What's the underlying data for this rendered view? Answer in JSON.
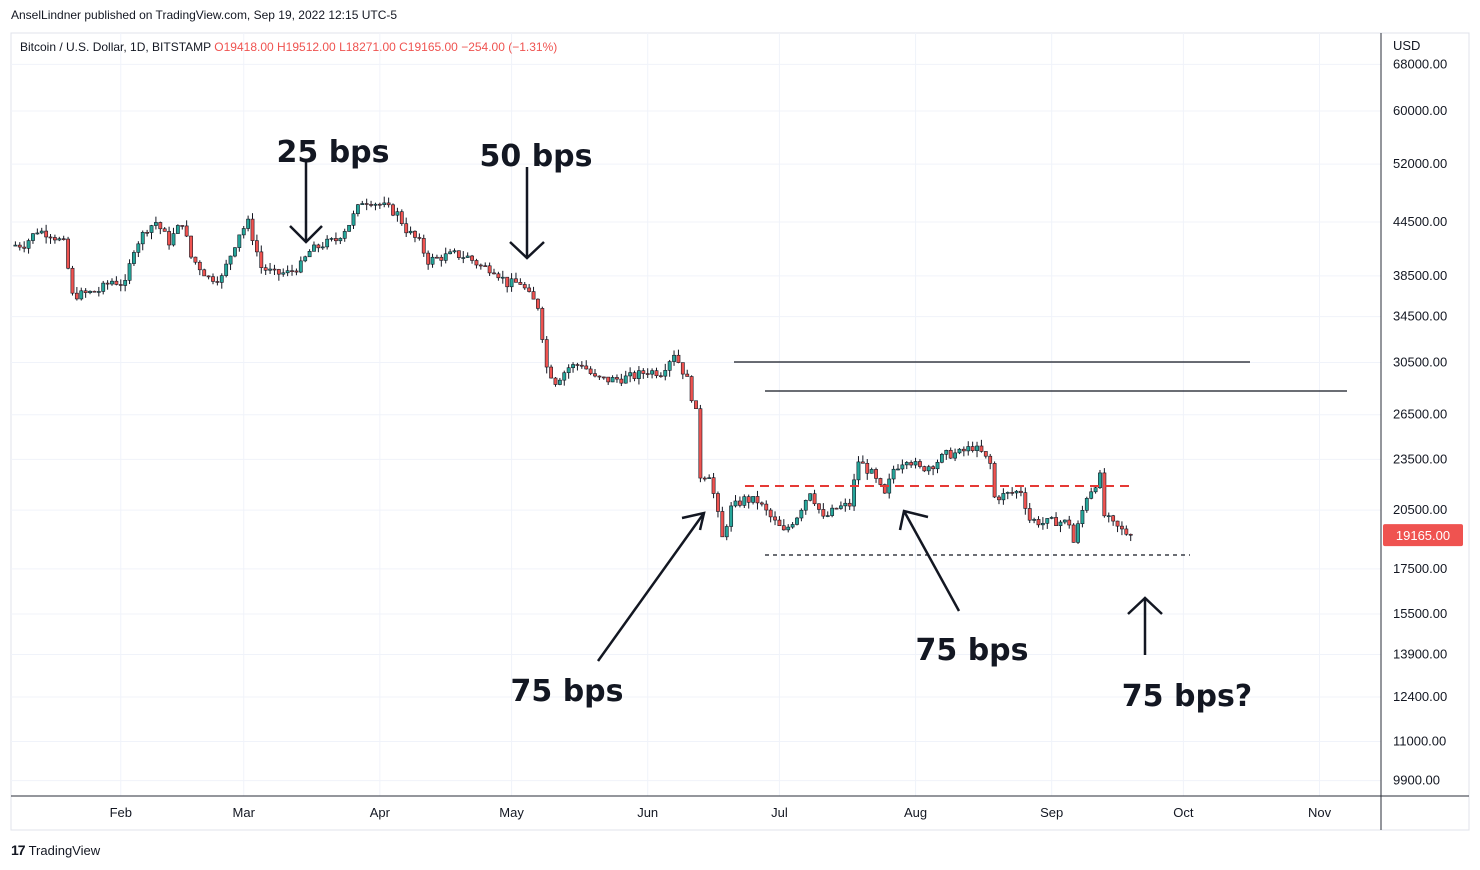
{
  "header": {
    "published_by": "AnselLindner published on TradingView.com, Sep 19, 2022 12:15 UTC-5"
  },
  "legend": {
    "symbol": "Bitcoin / U.S. Dollar, 1D, BITSTAMP",
    "open": "O19418.00",
    "high": "H19512.00",
    "low": "L18271.00",
    "close": "C19165.00",
    "change": "−254.00 (−1.31%)"
  },
  "footer": {
    "brand": "TradingView",
    "logo_glyph": "17"
  },
  "colors": {
    "up": "#26a69a",
    "down": "#ef5350",
    "annotation": "#131722",
    "dashed_red": "#e53935"
  },
  "chart_data": {
    "type": "candlestick",
    "currency": "USD",
    "y_scale": "log",
    "ylim": [
      9500,
      74000
    ],
    "x_range": [
      "2022-01-07",
      "2022-11-15"
    ],
    "y_ticks": [
      "68000.00",
      "60000.00",
      "52000.00",
      "44500.00",
      "38500.00",
      "34500.00",
      "30500.00",
      "26500.00",
      "23500.00",
      "20500.00",
      "17500.00",
      "15500.00",
      "13900.00",
      "12400.00",
      "11000.00",
      "9900.00"
    ],
    "x_ticks": [
      {
        "label": "Feb",
        "date": "2022-02-01"
      },
      {
        "label": "Mar",
        "date": "2022-03-01"
      },
      {
        "label": "Apr",
        "date": "2022-04-01"
      },
      {
        "label": "May",
        "date": "2022-05-01"
      },
      {
        "label": "Jun",
        "date": "2022-06-01"
      },
      {
        "label": "Jul",
        "date": "2022-07-01"
      },
      {
        "label": "Aug",
        "date": "2022-08-01"
      },
      {
        "label": "Sep",
        "date": "2022-09-01"
      },
      {
        "label": "Oct",
        "date": "2022-10-01"
      },
      {
        "label": "Nov",
        "date": "2022-11-01"
      }
    ],
    "last_price": "19165.00",
    "path": [
      [
        "2022-01-07",
        41800
      ],
      [
        "2022-01-10",
        41900
      ],
      [
        "2022-01-13",
        43500
      ],
      [
        "2022-01-16",
        43100
      ],
      [
        "2022-01-19",
        42000
      ],
      [
        "2022-01-21",
        36500
      ],
      [
        "2022-01-24",
        36700
      ],
      [
        "2022-01-27",
        37000
      ],
      [
        "2022-01-30",
        38000
      ],
      [
        "2022-02-02",
        37600
      ],
      [
        "2022-02-04",
        41500
      ],
      [
        "2022-02-07",
        43800
      ],
      [
        "2022-02-09",
        44500
      ],
      [
        "2022-02-12",
        42200
      ],
      [
        "2022-02-15",
        44500
      ],
      [
        "2022-02-17",
        40500
      ],
      [
        "2022-02-21",
        38300
      ],
      [
        "2022-02-24",
        38300
      ],
      [
        "2022-02-28",
        43200
      ],
      [
        "2022-03-02",
        44400
      ],
      [
        "2022-03-05",
        39400
      ],
      [
        "2022-03-08",
        38700
      ],
      [
        "2022-03-11",
        38800
      ],
      [
        "2022-03-14",
        39600
      ],
      [
        "2022-03-16",
        41100
      ],
      [
        "2022-03-19",
        41900
      ],
      [
        "2022-03-22",
        42400
      ],
      [
        "2022-03-25",
        44300
      ],
      [
        "2022-03-28",
        47100
      ],
      [
        "2022-03-30",
        47100
      ],
      [
        "2022-04-02",
        46400
      ],
      [
        "2022-04-05",
        45500
      ],
      [
        "2022-04-07",
        43600
      ],
      [
        "2022-04-10",
        42100
      ],
      [
        "2022-04-12",
        40100
      ],
      [
        "2022-04-15",
        40500
      ],
      [
        "2022-04-18",
        40800
      ],
      [
        "2022-04-21",
        40500
      ],
      [
        "2022-04-24",
        39500
      ],
      [
        "2022-04-27",
        39200
      ],
      [
        "2022-04-30",
        37700
      ],
      [
        "2022-05-03",
        37800
      ],
      [
        "2022-05-05",
        36500
      ],
      [
        "2022-05-07",
        35500
      ],
      [
        "2022-05-09",
        30100
      ],
      [
        "2022-05-11",
        29000
      ],
      [
        "2022-05-14",
        30100
      ],
      [
        "2022-05-17",
        30400
      ],
      [
        "2022-05-20",
        29200
      ],
      [
        "2022-05-23",
        29100
      ],
      [
        "2022-05-26",
        29200
      ],
      [
        "2022-05-29",
        29400
      ],
      [
        "2022-06-01",
        29800
      ],
      [
        "2022-06-04",
        29700
      ],
      [
        "2022-06-07",
        31300
      ],
      [
        "2022-06-10",
        29100
      ],
      [
        "2022-06-12",
        26600
      ],
      [
        "2022-06-13",
        22500
      ],
      [
        "2022-06-15",
        22600
      ],
      [
        "2022-06-18",
        19000
      ],
      [
        "2022-06-20",
        20600
      ],
      [
        "2022-06-23",
        21100
      ],
      [
        "2022-06-26",
        21000
      ],
      [
        "2022-06-29",
        20100
      ],
      [
        "2022-07-02",
        19300
      ],
      [
        "2022-07-05",
        20200
      ],
      [
        "2022-07-08",
        21600
      ],
      [
        "2022-07-11",
        20000
      ],
      [
        "2022-07-14",
        20600
      ],
      [
        "2022-07-17",
        20800
      ],
      [
        "2022-07-19",
        23400
      ],
      [
        "2022-07-22",
        22600
      ],
      [
        "2022-07-25",
        21300
      ],
      [
        "2022-07-27",
        22900
      ],
      [
        "2022-07-30",
        23600
      ],
      [
        "2022-08-02",
        22900
      ],
      [
        "2022-08-05",
        23200
      ],
      [
        "2022-08-08",
        23800
      ],
      [
        "2022-08-11",
        23900
      ],
      [
        "2022-08-14",
        24300
      ],
      [
        "2022-08-16",
        23900
      ],
      [
        "2022-08-18",
        23200
      ],
      [
        "2022-08-19",
        21200
      ],
      [
        "2022-08-22",
        21400
      ],
      [
        "2022-08-25",
        21600
      ],
      [
        "2022-08-27",
        20000
      ],
      [
        "2022-08-30",
        19800
      ],
      [
        "2022-09-02",
        19900
      ],
      [
        "2022-09-05",
        19800
      ],
      [
        "2022-09-06",
        18800
      ],
      [
        "2022-09-09",
        21300
      ],
      [
        "2022-09-12",
        22400
      ],
      [
        "2022-09-13",
        20200
      ],
      [
        "2022-09-15",
        19700
      ],
      [
        "2022-09-17",
        19400
      ],
      [
        "2022-09-19",
        19165
      ]
    ]
  },
  "annotations": {
    "rate_hikes": [
      {
        "text": "25 bps"
      },
      {
        "text": "50 bps"
      },
      {
        "text": "75 bps"
      },
      {
        "text": "75 bps"
      },
      {
        "text": "75 bps?"
      }
    ]
  }
}
